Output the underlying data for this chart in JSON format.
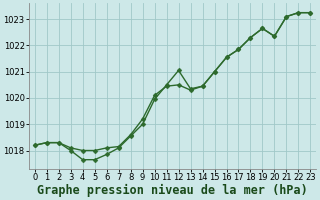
{
  "background_color": "#cde8e8",
  "plot_bg_color": "#cde8e8",
  "grid_color": "#a0c8c8",
  "line_color": "#2d6a2d",
  "xlim": [
    -0.5,
    23.5
  ],
  "ylim": [
    1017.3,
    1023.6
  ],
  "yticks": [
    1018,
    1019,
    1020,
    1021,
    1022,
    1023
  ],
  "xticks": [
    0,
    1,
    2,
    3,
    4,
    5,
    6,
    7,
    8,
    9,
    10,
    11,
    12,
    13,
    14,
    15,
    16,
    17,
    18,
    19,
    20,
    21,
    22,
    23
  ],
  "series1_x": [
    0,
    1,
    2,
    3,
    4,
    5,
    6,
    7,
    8,
    9,
    10,
    11,
    12,
    13,
    14,
    15,
    16,
    17,
    18,
    19,
    20,
    21,
    22,
    23
  ],
  "series1_y": [
    1018.2,
    1018.3,
    1018.3,
    1018.1,
    1018.0,
    1018.0,
    1018.1,
    1018.15,
    1018.6,
    1019.2,
    1020.1,
    1020.45,
    1020.5,
    1020.3,
    1020.45,
    1021.0,
    1021.55,
    1021.85,
    1022.3,
    1022.65,
    1022.35,
    1023.1,
    1023.25,
    1023.25
  ],
  "series2_x": [
    0,
    1,
    2,
    3,
    4,
    5,
    6,
    7,
    8,
    9,
    10,
    11,
    12,
    13,
    14,
    15,
    16,
    17,
    18,
    19,
    20,
    21,
    22,
    23
  ],
  "series2_y": [
    1018.2,
    1018.3,
    1018.3,
    1018.0,
    1017.65,
    1017.65,
    1017.85,
    1018.1,
    1018.55,
    1019.0,
    1019.95,
    1020.5,
    1021.05,
    1020.35,
    1020.45,
    1021.0,
    1021.55,
    1021.85,
    1022.3,
    1022.65,
    1022.35,
    1023.1,
    1023.25,
    1023.25
  ],
  "xlabel": "Graphe pression niveau de la mer (hPa)",
  "marker": "D",
  "markersize": 2.5,
  "linewidth": 1.0,
  "xlabel_fontsize": 8.5,
  "tick_fontsize": 6.0
}
